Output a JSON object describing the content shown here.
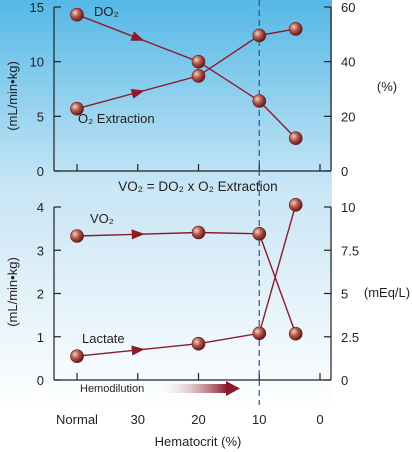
{
  "colors": {
    "top_panel_top": "#55b8e6",
    "top_panel_bottom": "#cfe9f7",
    "bottom_panel_top": "#cbe6f5",
    "bottom_panel_bottom": "#ffffff",
    "series_line": "#8b1a2b",
    "point_fill": "#b45a4a",
    "divider_dashed": "#3050a0",
    "axis": "#231f20",
    "hemodilution_arrow": "#8b1a2b"
  },
  "formula": "VO₂ = DO₂ x O₂ Extraction",
  "hemodilution_label": "Hemodilution",
  "dashed_line_x": 10,
  "chart_data": [
    {
      "type": "line",
      "panel": "top",
      "x_tick_positions": [
        40,
        30,
        20,
        10,
        0
      ],
      "x_domain": [
        40,
        0
      ],
      "xlabel": "Hematocrit (%)",
      "ylabel_left": "(mL/min•kg)",
      "ylabel_right": "(%)",
      "ylim_left": [
        0,
        15
      ],
      "ylim_right": [
        0,
        60
      ],
      "yticks_left": [
        0,
        5,
        10,
        15
      ],
      "yticks_right": [
        0,
        20,
        40,
        60
      ],
      "series": [
        {
          "name": "DO₂",
          "axis": "left",
          "x": [
            40,
            20,
            10,
            4
          ],
          "values": [
            14.3,
            10.0,
            6.4,
            3.0
          ]
        },
        {
          "name": "O₂ Extraction",
          "axis": "right",
          "x": [
            40,
            20,
            10,
            4
          ],
          "values": [
            22.8,
            34.8,
            49.6,
            52.0
          ]
        }
      ]
    },
    {
      "type": "line",
      "panel": "bottom",
      "x_tick_positions": [
        40,
        30,
        20,
        10,
        0
      ],
      "x_tick_labels": [
        "Normal",
        "30",
        "20",
        "10",
        "0"
      ],
      "x_domain": [
        40,
        0
      ],
      "xlabel": "Hematocrit (%)",
      "ylabel_left": "(mL/min•kg)",
      "ylabel_right": "(mEq/L)",
      "ylim_left": [
        0,
        4
      ],
      "ylim_right": [
        0,
        10
      ],
      "yticks_left": [
        0,
        1,
        2,
        3,
        4
      ],
      "yticks_right": [
        0,
        2.5,
        5,
        7.5,
        10
      ],
      "series": [
        {
          "name": "VO₂",
          "axis": "left",
          "x": [
            40,
            20,
            10,
            4
          ],
          "values": [
            3.33,
            3.41,
            3.38,
            1.07
          ]
        },
        {
          "name": "Lactate",
          "axis": "left",
          "x": [
            40,
            20,
            10,
            4
          ],
          "values": [
            0.55,
            0.84,
            1.08,
            4.05
          ]
        }
      ]
    }
  ]
}
